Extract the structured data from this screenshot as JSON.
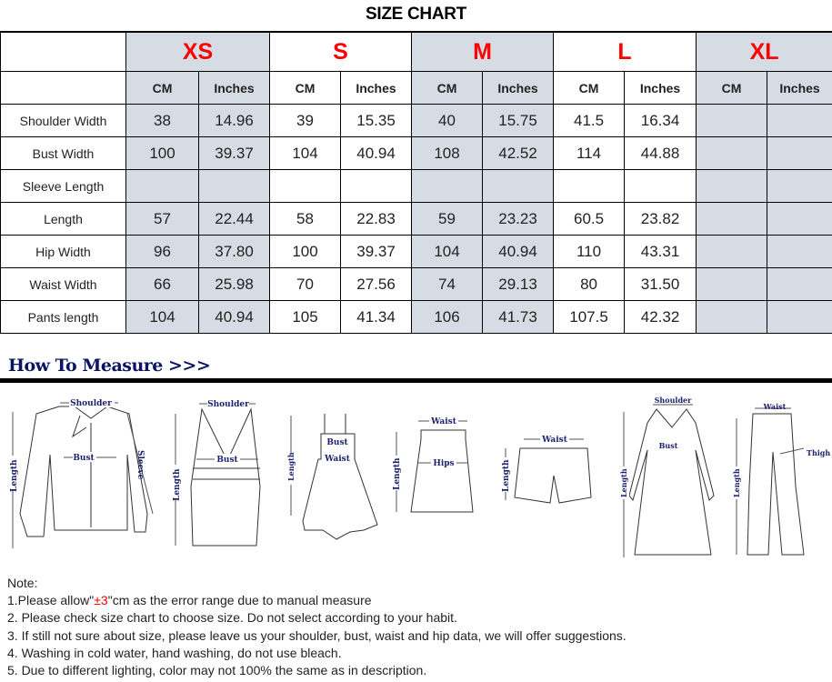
{
  "title": "SIZE CHART",
  "sizes": [
    "XS",
    "S",
    "M",
    "L",
    "XL"
  ],
  "units": [
    "CM",
    "Inches"
  ],
  "shaded_color": "#d6dce4",
  "size_color": "#ff0000",
  "rows": [
    {
      "label": "Shoulder Width",
      "values": [
        "38",
        "14.96",
        "39",
        "15.35",
        "40",
        "15.75",
        "41.5",
        "16.34",
        "",
        ""
      ]
    },
    {
      "label": "Bust Width",
      "values": [
        "100",
        "39.37",
        "104",
        "40.94",
        "108",
        "42.52",
        "114",
        "44.88",
        "",
        ""
      ]
    },
    {
      "label": "Sleeve Length",
      "values": [
        "",
        "",
        "",
        "",
        "",
        "",
        "",
        "",
        "",
        ""
      ]
    },
    {
      "label": "Length",
      "values": [
        "57",
        "22.44",
        "58",
        "22.83",
        "59",
        "23.23",
        "60.5",
        "23.82",
        "",
        ""
      ]
    },
    {
      "label": "Hip Width",
      "values": [
        "96",
        "37.80",
        "100",
        "39.37",
        "104",
        "40.94",
        "110",
        "43.31",
        "",
        ""
      ]
    },
    {
      "label": "Waist Width",
      "values": [
        "66",
        "25.98",
        "70",
        "27.56",
        "74",
        "29.13",
        "80",
        "31.50",
        "",
        ""
      ]
    },
    {
      "label": "Pants length",
      "values": [
        "104",
        "40.94",
        "105",
        "41.34",
        "106",
        "41.73",
        "107.5",
        "42.32",
        "",
        ""
      ]
    }
  ],
  "measure": {
    "title": "How To Measure >>>",
    "labels": {
      "shoulder": "Shoulder",
      "bust": "Bust",
      "sleeve": "Sleeve",
      "length": "Length",
      "waist": "Waist",
      "hips": "Hips",
      "thigh": "Thigh"
    }
  },
  "notes": {
    "heading": "Note:",
    "line1_pre": "1.Please allow\"",
    "line1_red": "±3",
    "line1_post": "\"cm as the error range due to manual measure",
    "line2": "2. Please check size chart to choose size. Do not select according to your habit.",
    "line3": "3. If still not sure about size, please leave us your shoulder, bust, waist and hip data, we will offer suggestions.",
    "line4": "4. Washing in cold water, hand washing, do not use bleach.",
    "line5": "5. Due to different lighting, color may not 100% the same as in description."
  }
}
